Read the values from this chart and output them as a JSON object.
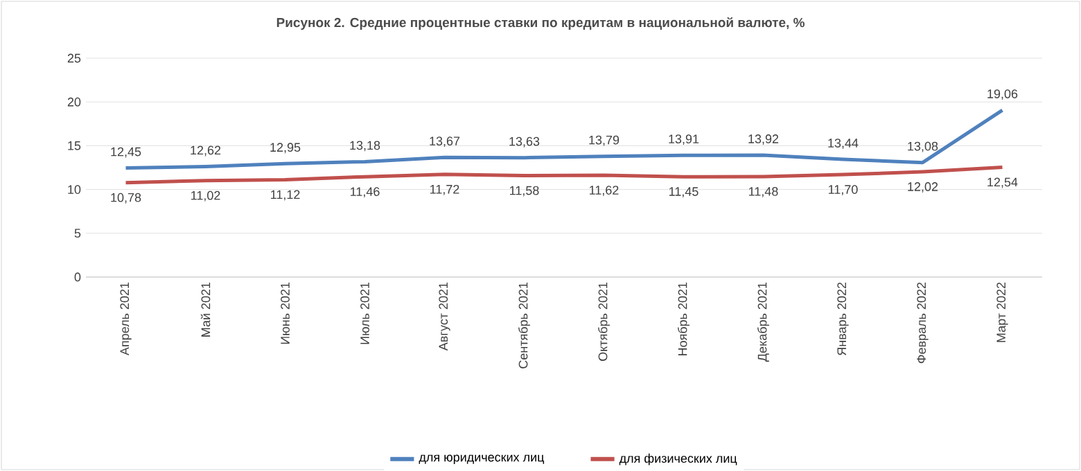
{
  "chart_data": {
    "type": "line",
    "title": "Рисунок 2. Средние процентные ставки по кредитам в национальной валюте, %",
    "categories": [
      "Апрель 2021",
      "Май 2021",
      "Июнь 2021",
      "Июль 2021",
      "Август 2021",
      "Сентябрь 2021",
      "Октябрь 2021",
      "Ноябрь 2021",
      "Декабрь 2021",
      "Январь 2022",
      "Февраль 2022",
      "Март 2022"
    ],
    "series": [
      {
        "name": "для юридических лиц",
        "color": "#4f81bd",
        "values": [
          12.45,
          12.62,
          12.95,
          13.18,
          13.67,
          13.63,
          13.79,
          13.91,
          13.92,
          13.44,
          13.08,
          19.06
        ],
        "value_labels": [
          "12,45",
          "12,62",
          "12,95",
          "13,18",
          "13,67",
          "13,63",
          "13,79",
          "13,91",
          "13,92",
          "13,44",
          "13,08",
          "19,06"
        ]
      },
      {
        "name": "для физических лиц",
        "color": "#c0504d",
        "values": [
          10.78,
          11.02,
          11.12,
          11.46,
          11.72,
          11.58,
          11.62,
          11.45,
          11.48,
          11.7,
          12.02,
          12.54
        ],
        "value_labels": [
          "10,78",
          "11,02",
          "11,12",
          "11,46",
          "11,72",
          "11,58",
          "11,62",
          "11,45",
          "11,48",
          "11,70",
          "12,02",
          "12,54"
        ]
      }
    ],
    "ylim": [
      0,
      25
    ],
    "yticks": [
      0,
      5,
      10,
      15,
      20,
      25
    ],
    "grid": "y",
    "legend": "bottom",
    "marker": "none",
    "line_style": "solid"
  }
}
